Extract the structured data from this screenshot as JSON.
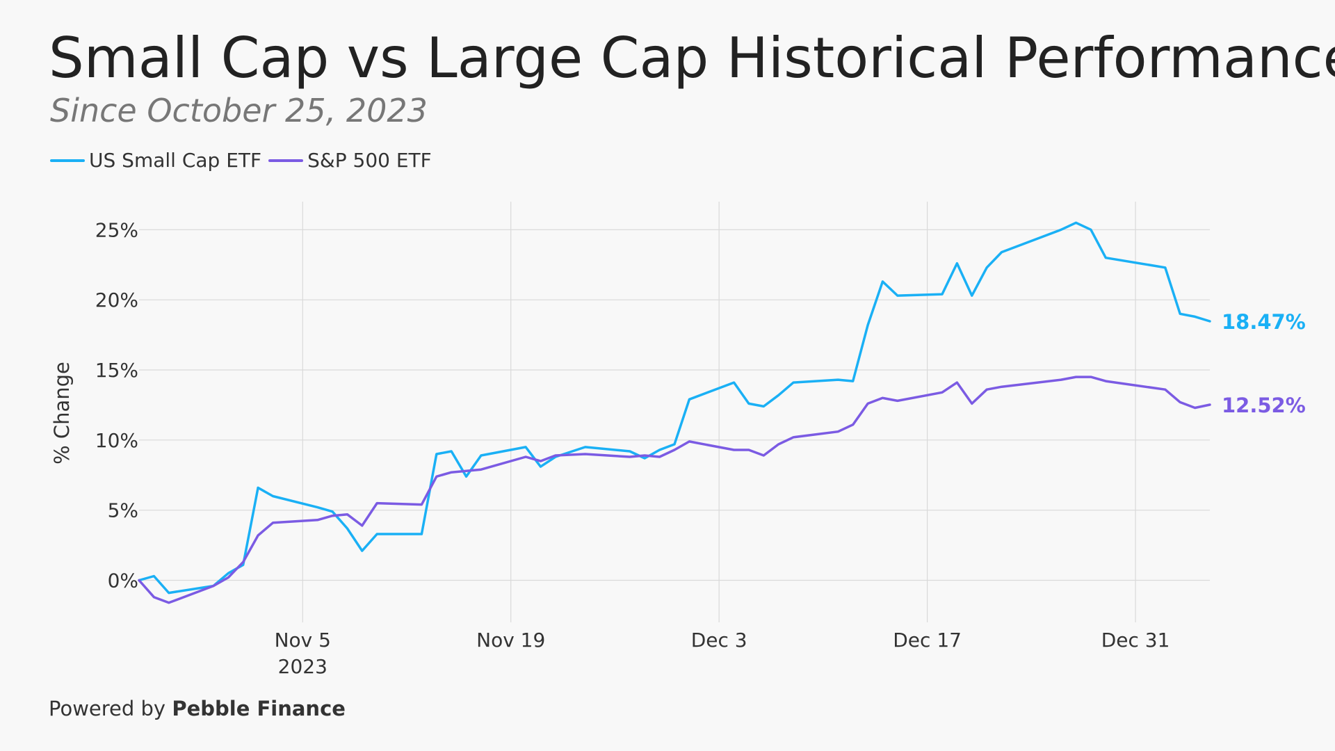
{
  "header": {
    "title": "Small Cap vs Large Cap Historical Performance",
    "subtitle": "Since October 25, 2023"
  },
  "footer": {
    "prefix": "Powered by ",
    "brand": "Pebble Finance"
  },
  "chart_data": {
    "type": "line",
    "ylabel": "% Change",
    "xlabel": "",
    "ylim": [
      -3,
      27
    ],
    "xlim": [
      "2023-10-25",
      "2024-01-05"
    ],
    "yticks": [
      0,
      5,
      10,
      15,
      20,
      25
    ],
    "ytick_labels": [
      "0%",
      "5%",
      "10%",
      "15%",
      "20%",
      "25%"
    ],
    "xticks": [
      {
        "date": "2023-11-05",
        "label": "Nov 5",
        "sublabel": "2023"
      },
      {
        "date": "2023-11-19",
        "label": "Nov 19",
        "sublabel": ""
      },
      {
        "date": "2023-12-03",
        "label": "Dec 3",
        "sublabel": ""
      },
      {
        "date": "2023-12-17",
        "label": "Dec 17",
        "sublabel": ""
      },
      {
        "date": "2023-12-31",
        "label": "Dec 31",
        "sublabel": ""
      }
    ],
    "grid": true,
    "legend_position": "top-left",
    "series": [
      {
        "name": "US Small Cap ETF",
        "color": "#1ab0f5",
        "end_label": "18.47%",
        "points": [
          [
            "2023-10-25",
            0.0
          ],
          [
            "2023-10-26",
            0.3
          ],
          [
            "2023-10-27",
            -0.9
          ],
          [
            "2023-10-30",
            -0.4
          ],
          [
            "2023-10-31",
            0.5
          ],
          [
            "2023-11-01",
            1.1
          ],
          [
            "2023-11-02",
            6.6
          ],
          [
            "2023-11-03",
            6.0
          ],
          [
            "2023-11-06",
            5.2
          ],
          [
            "2023-11-07",
            4.9
          ],
          [
            "2023-11-08",
            3.7
          ],
          [
            "2023-11-09",
            2.1
          ],
          [
            "2023-11-10",
            3.3
          ],
          [
            "2023-11-13",
            3.3
          ],
          [
            "2023-11-14",
            9.0
          ],
          [
            "2023-11-15",
            9.2
          ],
          [
            "2023-11-16",
            7.4
          ],
          [
            "2023-11-17",
            8.9
          ],
          [
            "2023-11-20",
            9.5
          ],
          [
            "2023-11-21",
            8.1
          ],
          [
            "2023-11-22",
            8.8
          ],
          [
            "2023-11-24",
            9.5
          ],
          [
            "2023-11-27",
            9.2
          ],
          [
            "2023-11-28",
            8.7
          ],
          [
            "2023-11-29",
            9.3
          ],
          [
            "2023-11-30",
            9.7
          ],
          [
            "2023-12-01",
            12.9
          ],
          [
            "2023-12-04",
            14.1
          ],
          [
            "2023-12-05",
            12.6
          ],
          [
            "2023-12-06",
            12.4
          ],
          [
            "2023-12-07",
            13.2
          ],
          [
            "2023-12-08",
            14.1
          ],
          [
            "2023-12-11",
            14.3
          ],
          [
            "2023-12-12",
            14.2
          ],
          [
            "2023-12-13",
            18.2
          ],
          [
            "2023-12-14",
            21.3
          ],
          [
            "2023-12-15",
            20.3
          ],
          [
            "2023-12-18",
            20.4
          ],
          [
            "2023-12-19",
            22.6
          ],
          [
            "2023-12-20",
            20.3
          ],
          [
            "2023-12-21",
            22.3
          ],
          [
            "2023-12-22",
            23.4
          ],
          [
            "2023-12-26",
            25.0
          ],
          [
            "2023-12-27",
            25.5
          ],
          [
            "2023-12-28",
            25.0
          ],
          [
            "2023-12-29",
            23.0
          ],
          [
            "2024-01-02",
            22.3
          ],
          [
            "2024-01-03",
            19.0
          ],
          [
            "2024-01-04",
            18.8
          ],
          [
            "2024-01-05",
            18.47
          ]
        ]
      },
      {
        "name": "S&P 500 ETF",
        "color": "#7b5be3",
        "end_label": "12.52%",
        "points": [
          [
            "2023-10-25",
            0.0
          ],
          [
            "2023-10-26",
            -1.2
          ],
          [
            "2023-10-27",
            -1.6
          ],
          [
            "2023-10-30",
            -0.4
          ],
          [
            "2023-10-31",
            0.2
          ],
          [
            "2023-11-01",
            1.3
          ],
          [
            "2023-11-02",
            3.2
          ],
          [
            "2023-11-03",
            4.1
          ],
          [
            "2023-11-06",
            4.3
          ],
          [
            "2023-11-07",
            4.6
          ],
          [
            "2023-11-08",
            4.7
          ],
          [
            "2023-11-09",
            3.9
          ],
          [
            "2023-11-10",
            5.5
          ],
          [
            "2023-11-13",
            5.4
          ],
          [
            "2023-11-14",
            7.4
          ],
          [
            "2023-11-15",
            7.7
          ],
          [
            "2023-11-16",
            7.8
          ],
          [
            "2023-11-17",
            7.9
          ],
          [
            "2023-11-20",
            8.8
          ],
          [
            "2023-11-21",
            8.5
          ],
          [
            "2023-11-22",
            8.9
          ],
          [
            "2023-11-24",
            9.0
          ],
          [
            "2023-11-27",
            8.8
          ],
          [
            "2023-11-28",
            8.9
          ],
          [
            "2023-11-29",
            8.8
          ],
          [
            "2023-11-30",
            9.3
          ],
          [
            "2023-12-01",
            9.9
          ],
          [
            "2023-12-04",
            9.3
          ],
          [
            "2023-12-05",
            9.3
          ],
          [
            "2023-12-06",
            8.9
          ],
          [
            "2023-12-07",
            9.7
          ],
          [
            "2023-12-08",
            10.2
          ],
          [
            "2023-12-11",
            10.6
          ],
          [
            "2023-12-12",
            11.1
          ],
          [
            "2023-12-13",
            12.6
          ],
          [
            "2023-12-14",
            13.0
          ],
          [
            "2023-12-15",
            12.8
          ],
          [
            "2023-12-18",
            13.4
          ],
          [
            "2023-12-19",
            14.1
          ],
          [
            "2023-12-20",
            12.6
          ],
          [
            "2023-12-21",
            13.6
          ],
          [
            "2023-12-22",
            13.8
          ],
          [
            "2023-12-26",
            14.3
          ],
          [
            "2023-12-27",
            14.5
          ],
          [
            "2023-12-28",
            14.5
          ],
          [
            "2023-12-29",
            14.2
          ],
          [
            "2024-01-02",
            13.6
          ],
          [
            "2024-01-03",
            12.7
          ],
          [
            "2024-01-04",
            12.3
          ],
          [
            "2024-01-05",
            12.52
          ]
        ]
      }
    ]
  }
}
